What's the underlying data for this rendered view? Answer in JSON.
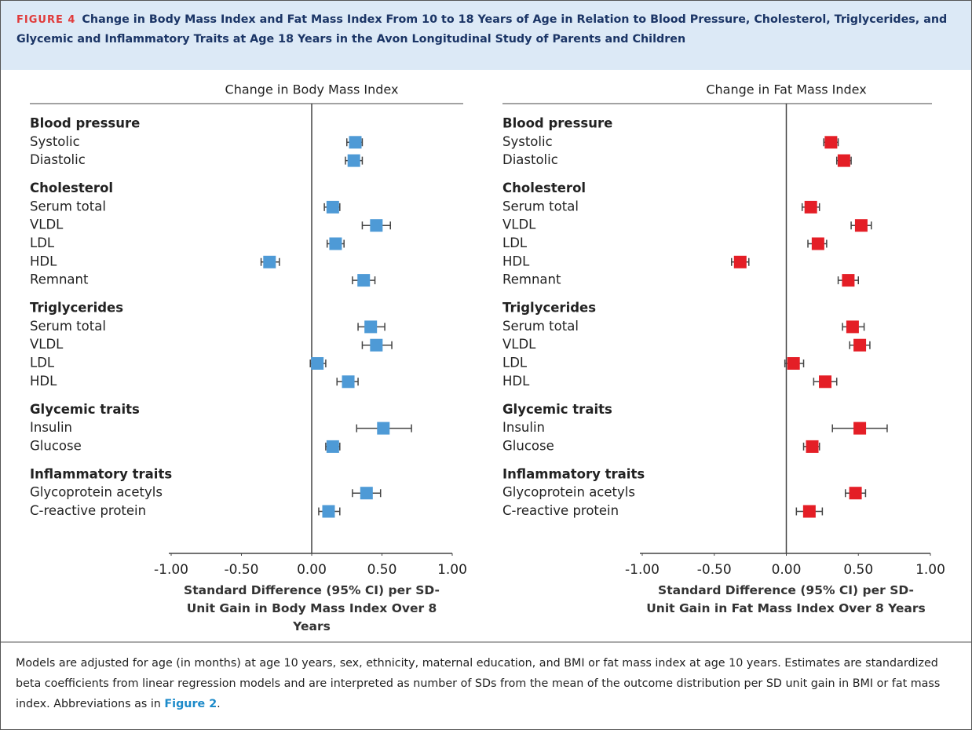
{
  "figure_label": "FIGURE 4",
  "title": "Change in Body Mass Index and Fat Mass Index From 10 to 18 Years of Age in Relation to Blood Pressure, Cholesterol, Triglycerides, and Glycemic and Inflammatory Traits at Age 18 Years in the Avon Longitudinal Study of Parents and Children",
  "chart_data": [
    {
      "type": "forest",
      "title": "Change in Body Mass Index",
      "xlabel": "Standard Difference (95% CI) per SD-Unit Gain in Body Mass Index Over 8 Years",
      "color": "#4e9ad6",
      "categories": [
        "Blood pressure",
        "Systolic",
        "Diastolic",
        "Cholesterol",
        "Serum total",
        "VLDL",
        "LDL",
        "HDL",
        "Remnant",
        "Triglycerides",
        "Serum total",
        "VLDL",
        "LDL",
        "HDL",
        "Glycemic traits",
        "Insulin",
        "Glucose",
        "Inflammatory traits",
        "Glycoprotein acetyls",
        "C-reactive protein"
      ],
      "values": [
        null,
        0.31,
        0.3,
        null,
        0.15,
        0.46,
        0.17,
        -0.3,
        0.37,
        null,
        0.42,
        0.46,
        0.04,
        0.26,
        null,
        0.51,
        0.15,
        null,
        0.39,
        0.12
      ],
      "ci_lower": [
        null,
        0.25,
        0.24,
        null,
        0.09,
        0.36,
        0.11,
        -0.36,
        0.29,
        null,
        0.33,
        0.36,
        -0.01,
        0.18,
        null,
        0.32,
        0.1,
        null,
        0.29,
        0.05
      ],
      "ci_upper": [
        null,
        0.36,
        0.36,
        null,
        0.2,
        0.56,
        0.23,
        -0.23,
        0.45,
        null,
        0.52,
        0.57,
        0.1,
        0.33,
        null,
        0.71,
        0.2,
        null,
        0.49,
        0.2
      ],
      "xlim": [
        -1,
        1
      ],
      "xticks": [
        {
          "value": -1,
          "label": "-1.00"
        },
        {
          "value": -0.5,
          "label": "-0.50"
        },
        {
          "value": 0,
          "label": "0.00"
        },
        {
          "value": 0.5,
          "label": "0.50"
        },
        {
          "value": 1,
          "label": "1.00"
        }
      ]
    },
    {
      "type": "forest",
      "title": "Change in Fat Mass Index",
      "xlabel": "Standard Difference (95% CI) per SD-Unit Gain in Fat Mass Index Over 8 Years",
      "color": "#e41e26",
      "categories": [
        "Blood pressure",
        "Systolic",
        "Diastolic",
        "Cholesterol",
        "Serum total",
        "VLDL",
        "LDL",
        "HDL",
        "Remnant",
        "Triglycerides",
        "Serum total",
        "VLDL",
        "LDL",
        "HDL",
        "Glycemic traits",
        "Insulin",
        "Glucose",
        "Inflammatory traits",
        "Glycoprotein acetyls",
        "C-reactive protein"
      ],
      "values": [
        null,
        0.31,
        0.4,
        null,
        0.17,
        0.52,
        0.22,
        -0.32,
        0.43,
        null,
        0.46,
        0.51,
        0.05,
        0.27,
        null,
        0.51,
        0.18,
        null,
        0.48,
        0.16
      ],
      "ci_lower": [
        null,
        0.26,
        0.35,
        null,
        0.11,
        0.45,
        0.15,
        -0.38,
        0.36,
        null,
        0.39,
        0.44,
        -0.01,
        0.19,
        null,
        0.32,
        0.12,
        null,
        0.41,
        0.07
      ],
      "ci_upper": [
        null,
        0.36,
        0.45,
        null,
        0.23,
        0.59,
        0.28,
        -0.26,
        0.5,
        null,
        0.54,
        0.58,
        0.12,
        0.35,
        null,
        0.7,
        0.23,
        null,
        0.55,
        0.25
      ],
      "xlim": [
        -1,
        1
      ],
      "xticks": [
        {
          "value": -1,
          "label": "-1.00"
        },
        {
          "value": -0.5,
          "label": "-0.50"
        },
        {
          "value": 0,
          "label": "0.00"
        },
        {
          "value": 0.5,
          "label": "0.50"
        },
        {
          "value": 1,
          "label": "1.00"
        }
      ]
    }
  ],
  "caption": {
    "text": "Models are adjusted for age (in months) at age 10 years, sex, ethnicity, maternal education, and BMI or fat mass index at age 10 years. Estimates are standardized beta coefficients from linear regression models and are interpreted as number of SDs from the mean of the outcome distribution per SD unit gain in BMI or fat mass index. Abbreviations as in ",
    "link": "Figure 2",
    "end": "."
  }
}
